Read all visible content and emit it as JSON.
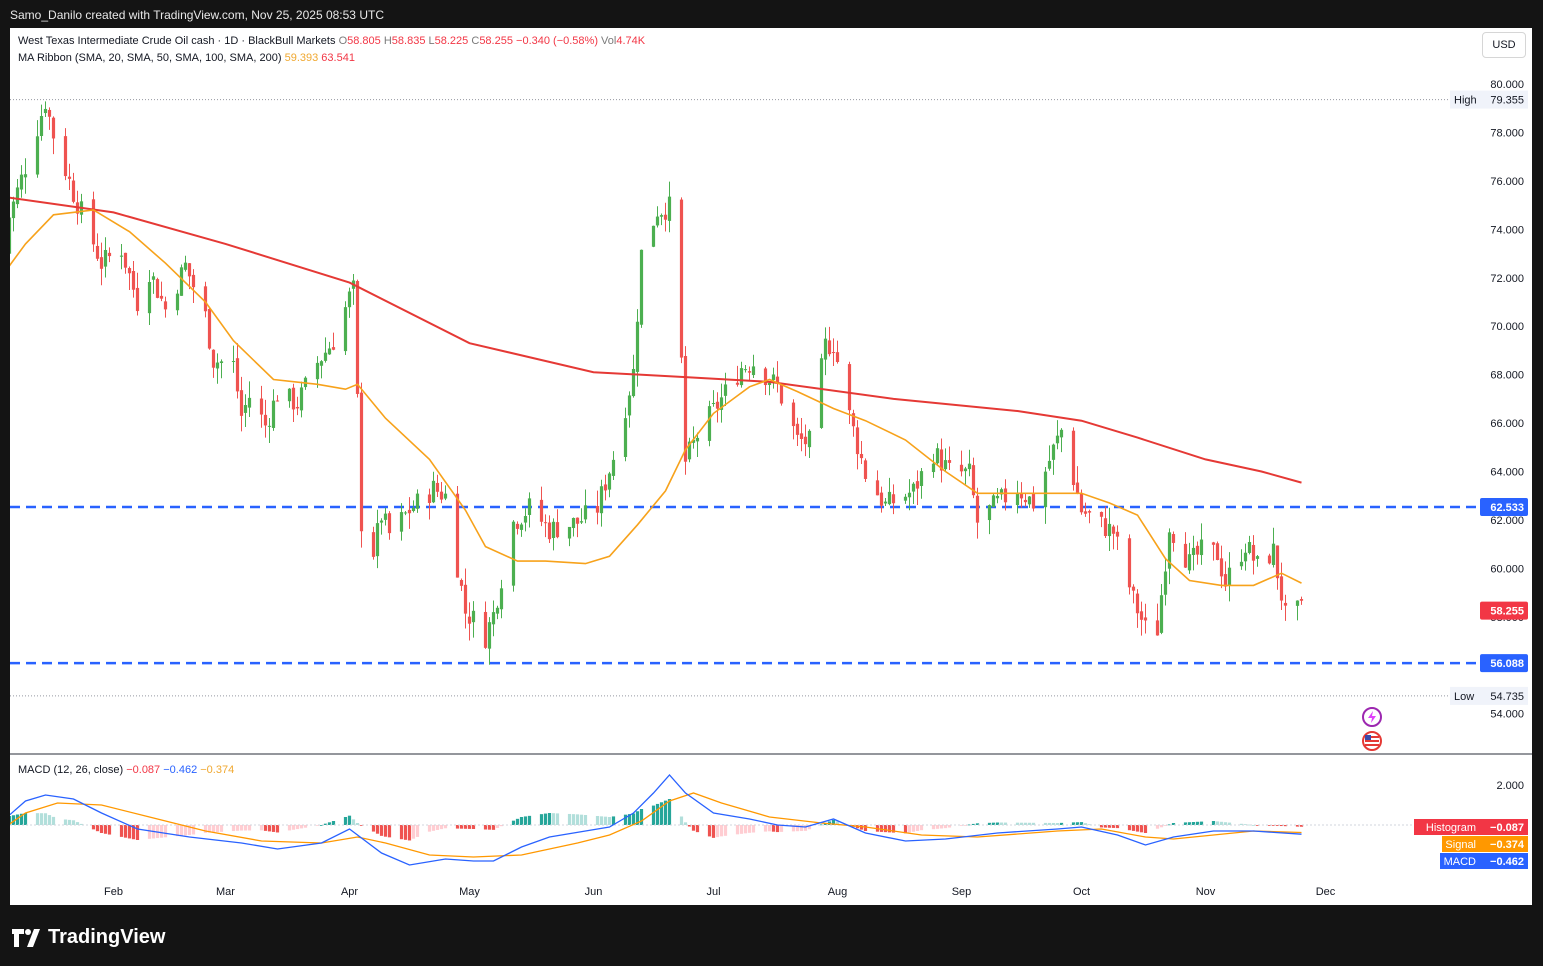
{
  "header": {
    "credit": "Samo_Danilo created with TradingView.com, Nov 25, 2025 08:53 UTC"
  },
  "legend": {
    "symbol": "West Texas Intermediate Crude Oil cash · 1D · BlackBull Markets",
    "o_label": "O",
    "o": "58.805",
    "h_label": "H",
    "h": "58.835",
    "l_label": "L",
    "l": "58.225",
    "c_label": "C",
    "c": "58.255",
    "change": "−0.340 (−0.58%)",
    "vol_label": "Vol",
    "vol": "4.74K",
    "ma_label": "MA Ribbon (SMA, 20, SMA, 50, SMA, 100, SMA, 200)",
    "ma20": "59.393",
    "ma200": "63.541",
    "macd_label": "MACD (12, 26, close)",
    "macd_hist": "−0.087",
    "macd_line": "−0.462",
    "macd_signal": "−0.374"
  },
  "currency_button": "USD",
  "footer": {
    "brand": "TradingView"
  },
  "colors": {
    "up": "#26a69a",
    "up_bar": "#4caf50",
    "down": "#ef5350",
    "sma20": "#f7a21b",
    "sma200": "#e53935",
    "level": "#2962ff",
    "macd": "#2962ff",
    "signal": "#ff9800"
  },
  "chart_data": {
    "type": "candlestick",
    "price_axis": {
      "min": 54,
      "max": 80,
      "ticks": [
        "80.000",
        "78.000",
        "76.000",
        "74.000",
        "72.000",
        "70.000",
        "68.000",
        "66.000",
        "64.000",
        "62.000",
        "60.000",
        "58.000",
        "56.000",
        "54.000"
      ]
    },
    "time_axis": {
      "labels": [
        "Feb",
        "Mar",
        "Apr",
        "May",
        "Jun",
        "Jul",
        "Aug",
        "Sep",
        "Oct",
        "Nov",
        "Dec"
      ]
    },
    "price_labels": [
      {
        "label": "High",
        "value": "79.355",
        "type": "high"
      },
      {
        "label": "",
        "value": "62.533",
        "type": "level"
      },
      {
        "label": "",
        "value": "58.255",
        "type": "last"
      },
      {
        "label": "",
        "value": "56.088",
        "type": "level"
      },
      {
        "label": "Low",
        "value": "54.735",
        "type": "low"
      }
    ],
    "horizontal_levels": [
      62.533,
      56.088
    ],
    "high": 79.355,
    "low": 54.735,
    "close_path": [
      [
        "Jan 3",
        73.0
      ],
      [
        "Jan 10",
        76.6
      ],
      [
        "Jan 15",
        79.3
      ],
      [
        "Jan 17",
        77.9
      ],
      [
        "Jan 22",
        75.5
      ],
      [
        "Jan 24",
        74.7
      ],
      [
        "Jan 29",
        72.6
      ],
      [
        "Feb 3",
        73.2
      ],
      [
        "Feb 7",
        71.0
      ],
      [
        "Feb 10",
        72.3
      ],
      [
        "Feb 14",
        70.7
      ],
      [
        "Feb 19",
        72.5
      ],
      [
        "Feb 24",
        70.4
      ],
      [
        "Feb 26",
        68.6
      ],
      [
        "Mar 3",
        68.4
      ],
      [
        "Mar 5",
        66.3
      ],
      [
        "Mar 7",
        67.1
      ],
      [
        "Mar 11",
        65.9
      ],
      [
        "Mar 14",
        67.2
      ],
      [
        "Mar 19",
        66.8
      ],
      [
        "Mar 24",
        68.5
      ],
      [
        "Mar 28",
        69.4
      ],
      [
        "Apr 1",
        71.2
      ],
      [
        "Apr 2",
        71.5
      ],
      [
        "Apr 3",
        66.9
      ],
      [
        "Apr 4",
        61.9
      ],
      [
        "Apr 7",
        60.7
      ],
      [
        "Apr 9",
        62.2
      ],
      [
        "Apr 11",
        61.4
      ],
      [
        "Apr 16",
        62.4
      ],
      [
        "Apr 22",
        63.3
      ],
      [
        "Apr 25",
        63.0
      ],
      [
        "Apr 30",
        58.2
      ],
      [
        "May 2",
        57.9
      ],
      [
        "May 5",
        57.2
      ],
      [
        "May 7",
        58.1
      ],
      [
        "May 12",
        61.9
      ],
      [
        "May 16",
        62.5
      ],
      [
        "May 21",
        61.6
      ],
      [
        "May 28",
        61.9
      ],
      [
        "Jun 2",
        62.5
      ],
      [
        "Jun 6",
        64.6
      ],
      [
        "Jun 11",
        68.1
      ],
      [
        "Jun 13",
        73.0
      ],
      [
        "Jun 17",
        74.8
      ],
      [
        "Jun 20",
        74.9
      ],
      [
        "Jun 23",
        68.5
      ],
      [
        "Jun 24",
        64.4
      ],
      [
        "Jun 27",
        65.5
      ],
      [
        "Jul 3",
        67.0
      ],
      [
        "Jul 8",
        68.3
      ],
      [
        "Jul 11",
        68.5
      ],
      [
        "Jul 17",
        67.5
      ],
      [
        "Jul 22",
        65.3
      ],
      [
        "Jul 25",
        65.2
      ],
      [
        "Jul 29",
        69.2
      ],
      [
        "Jul 31",
        69.3
      ],
      [
        "Aug 4",
        66.3
      ],
      [
        "Aug 8",
        63.9
      ],
      [
        "Aug 13",
        62.6
      ],
      [
        "Aug 20",
        63.2
      ],
      [
        "Aug 25",
        64.8
      ],
      [
        "Aug 29",
        64.0
      ],
      [
        "Sep 3",
        63.9
      ],
      [
        "Sep 5",
        61.9
      ],
      [
        "Sep 10",
        62.7
      ],
      [
        "Sep 15",
        63.3
      ],
      [
        "Sep 19",
        62.7
      ],
      [
        "Sep 24",
        64.9
      ],
      [
        "Sep 26",
        65.7
      ],
      [
        "Oct 1",
        62.4
      ],
      [
        "Oct 6",
        61.8
      ],
      [
        "Oct 9",
        61.5
      ],
      [
        "Oct 14",
        58.7
      ],
      [
        "Oct 17",
        57.5
      ],
      [
        "Oct 20",
        57.5
      ],
      [
        "Oct 23",
        61.8
      ],
      [
        "Oct 28",
        60.2
      ],
      [
        "Oct 31",
        60.7
      ],
      [
        "Nov 4",
        60.6
      ],
      [
        "Nov 6",
        59.4
      ],
      [
        "Nov 11",
        61.0
      ],
      [
        "Nov 14",
        60.1
      ],
      [
        "Nov 18",
        60.7
      ],
      [
        "Nov 21",
        58.0
      ],
      [
        "Nov 25",
        58.255
      ]
    ],
    "sma20": [
      [
        "Jan 2",
        71.6
      ],
      [
        "Jan 10",
        73.4
      ],
      [
        "Jan 17",
        74.6
      ],
      [
        "Jan 27",
        74.8
      ],
      [
        "Feb 5",
        73.9
      ],
      [
        "Feb 14",
        72.6
      ],
      [
        "Feb 24",
        71.0
      ],
      [
        "Mar 3",
        69.4
      ],
      [
        "Mar 13",
        67.8
      ],
      [
        "Mar 24",
        67.6
      ],
      [
        "Mar 31",
        67.4
      ],
      [
        "Apr 3",
        67.6
      ],
      [
        "Apr 10",
        66.2
      ],
      [
        "Apr 21",
        64.5
      ],
      [
        "Apr 30",
        62.4
      ],
      [
        "May 5",
        60.9
      ],
      [
        "May 13",
        60.3
      ],
      [
        "May 20",
        60.3
      ],
      [
        "May 30",
        60.2
      ],
      [
        "Jun 5",
        60.5
      ],
      [
        "Jun 12",
        61.8
      ],
      [
        "Jun 19",
        63.2
      ],
      [
        "Jun 24",
        64.9
      ],
      [
        "Jul 1",
        66.4
      ],
      [
        "Jul 10",
        67.5
      ],
      [
        "Jul 15",
        67.8
      ],
      [
        "Jul 22",
        67.3
      ],
      [
        "Jul 31",
        66.6
      ],
      [
        "Aug 8",
        66.1
      ],
      [
        "Aug 18",
        65.3
      ],
      [
        "Aug 28",
        64.0
      ],
      [
        "Sep 5",
        63.1
      ],
      [
        "Sep 15",
        63.1
      ],
      [
        "Sep 24",
        63.1
      ],
      [
        "Oct 1",
        63.1
      ],
      [
        "Oct 8",
        62.7
      ],
      [
        "Oct 15",
        62.2
      ],
      [
        "Oct 22",
        60.4
      ],
      [
        "Oct 28",
        59.5
      ],
      [
        "Nov 5",
        59.3
      ],
      [
        "Nov 13",
        59.3
      ],
      [
        "Nov 20",
        59.8
      ],
      [
        "Nov 25",
        59.393
      ]
    ],
    "sma200": [
      [
        "Jan 2",
        75.4
      ],
      [
        "Feb 1",
        74.7
      ],
      [
        "Mar 1",
        73.4
      ],
      [
        "Apr 1",
        71.8
      ],
      [
        "May 1",
        69.3
      ],
      [
        "Jun 1",
        68.1
      ],
      [
        "Jun 24",
        67.9
      ],
      [
        "Jul 15",
        67.7
      ],
      [
        "Aug 15",
        67.0
      ],
      [
        "Sep 15",
        66.5
      ],
      [
        "Oct 1",
        66.1
      ],
      [
        "Oct 15",
        65.4
      ],
      [
        "Nov 1",
        64.5
      ],
      [
        "Nov 15",
        64.0
      ],
      [
        "Nov 25",
        63.541
      ]
    ],
    "macd": {
      "ticks": [
        "2.000"
      ],
      "labels": [
        {
          "name": "Histogram",
          "value": "−0.087"
        },
        {
          "name": "Signal",
          "value": "−0.374"
        },
        {
          "name": "MACD",
          "value": "−0.462"
        }
      ],
      "macd_line": [
        [
          "Jan 2",
          -0.2
        ],
        [
          "Jan 10",
          1.2
        ],
        [
          "Jan 15",
          1.5
        ],
        [
          "Jan 22",
          1.3
        ],
        [
          "Jan 29",
          0.6
        ],
        [
          "Feb 7",
          -0.2
        ],
        [
          "Feb 20",
          -0.6
        ],
        [
          "Mar 5",
          -0.9
        ],
        [
          "Mar 14",
          -1.2
        ],
        [
          "Mar 25",
          -0.9
        ],
        [
          "Apr 1",
          -0.2
        ],
        [
          "Apr 3",
          -0.5
        ],
        [
          "Apr 9",
          -1.4
        ],
        [
          "Apr 16",
          -2.0
        ],
        [
          "Apr 25",
          -1.7
        ],
        [
          "May 2",
          -1.8
        ],
        [
          "May 7",
          -1.8
        ],
        [
          "May 14",
          -1.1
        ],
        [
          "May 21",
          -0.6
        ],
        [
          "May 30",
          -0.3
        ],
        [
          "Jun 5",
          -0.1
        ],
        [
          "Jun 11",
          0.6
        ],
        [
          "Jun 16",
          1.6
        ],
        [
          "Jun 20",
          2.5
        ],
        [
          "Jun 24",
          1.6
        ],
        [
          "Jul 1",
          0.6
        ],
        [
          "Jul 10",
          0.3
        ],
        [
          "Jul 17",
          0.0
        ],
        [
          "Jul 24",
          -0.1
        ],
        [
          "Jul 31",
          0.3
        ],
        [
          "Aug 8",
          -0.4
        ],
        [
          "Aug 18",
          -0.8
        ],
        [
          "Aug 28",
          -0.7
        ],
        [
          "Sep 10",
          -0.4
        ],
        [
          "Sep 25",
          -0.2
        ],
        [
          "Oct 1",
          -0.1
        ],
        [
          "Oct 10",
          -0.5
        ],
        [
          "Oct 17",
          -1.0
        ],
        [
          "Oct 24",
          -0.6
        ],
        [
          "Nov 3",
          -0.3
        ],
        [
          "Nov 13",
          -0.3
        ],
        [
          "Nov 25",
          -0.462
        ]
      ],
      "signal_line": [
        [
          "Jan 2",
          -0.5
        ],
        [
          "Jan 10",
          0.6
        ],
        [
          "Jan 18",
          1.1
        ],
        [
          "Jan 29",
          1.0
        ],
        [
          "Feb 10",
          0.4
        ],
        [
          "Feb 24",
          -0.3
        ],
        [
          "Mar 10",
          -0.8
        ],
        [
          "Mar 25",
          -0.9
        ],
        [
          "Apr 3",
          -0.6
        ],
        [
          "Apr 10",
          -0.9
        ],
        [
          "Apr 21",
          -1.5
        ],
        [
          "May 2",
          -1.6
        ],
        [
          "May 14",
          -1.5
        ],
        [
          "May 28",
          -0.9
        ],
        [
          "Jun 5",
          -0.5
        ],
        [
          "Jun 13",
          0.2
        ],
        [
          "Jun 20",
          1.2
        ],
        [
          "Jun 26",
          1.6
        ],
        [
          "Jul 3",
          1.1
        ],
        [
          "Jul 15",
          0.4
        ],
        [
          "Jul 28",
          0.1
        ],
        [
          "Aug 8",
          -0.1
        ],
        [
          "Aug 22",
          -0.5
        ],
        [
          "Sep 5",
          -0.6
        ],
        [
          "Sep 25",
          -0.3
        ],
        [
          "Oct 6",
          -0.2
        ],
        [
          "Oct 17",
          -0.6
        ],
        [
          "Oct 24",
          -0.7
        ],
        [
          "Nov 3",
          -0.5
        ],
        [
          "Nov 13",
          -0.3
        ],
        [
          "Nov 25",
          -0.374
        ]
      ]
    }
  }
}
